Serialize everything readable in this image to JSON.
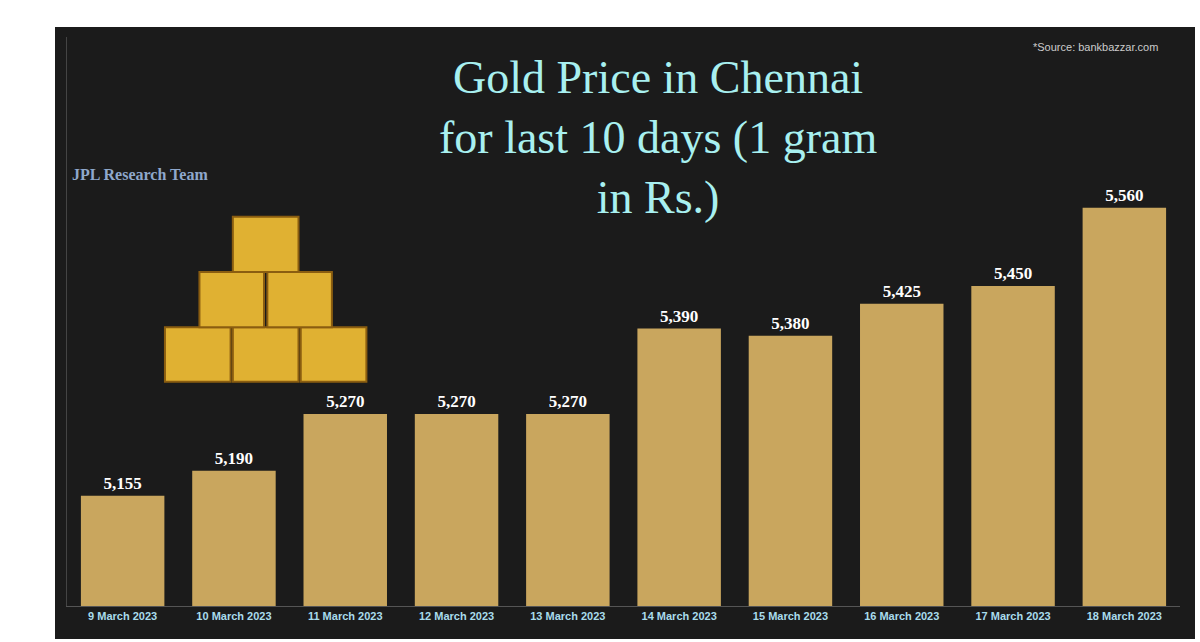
{
  "chart_data": {
    "type": "bar",
    "title": "Gold Price in Chennai for last 10 days (1 gram in Rs.)",
    "source": "*Source: bankbazzar.com",
    "credit": "JPL Research Team",
    "categories": [
      "9 March 2023",
      "10 March 2023",
      "11 March 2023",
      "12 March 2023",
      "13 March 2023",
      "14 March 2023",
      "15 March 2023",
      "16 March 2023",
      "17 March 2023",
      "18 March 2023"
    ],
    "values": [
      5155,
      5190,
      5270,
      5270,
      5270,
      5390,
      5380,
      5425,
      5450,
      5560
    ],
    "value_labels": [
      "5,155",
      "5,190",
      "5,270",
      "5,270",
      "5,270",
      "5,390",
      "5,380",
      "5,425",
      "5,450",
      "5,560"
    ],
    "color": "#c9a65e",
    "ylim": [
      5000,
      5800
    ],
    "yticks": [],
    "grid": false,
    "data_labels": true,
    "tick_labels": "x"
  }
}
